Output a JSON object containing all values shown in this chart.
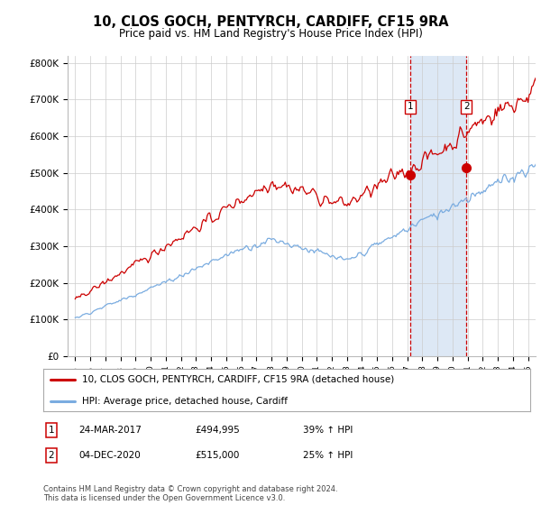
{
  "title": "10, CLOS GOCH, PENTYRCH, CARDIFF, CF15 9RA",
  "subtitle": "Price paid vs. HM Land Registry's House Price Index (HPI)",
  "ylabel_ticks": [
    "£0",
    "£100K",
    "£200K",
    "£300K",
    "£400K",
    "£500K",
    "£600K",
    "£700K",
    "£800K"
  ],
  "ytick_values": [
    0,
    100000,
    200000,
    300000,
    400000,
    500000,
    600000,
    700000,
    800000
  ],
  "ylim": [
    0,
    820000
  ],
  "xlim_start": 1994.5,
  "xlim_end": 2025.5,
  "xticks": [
    1995,
    1996,
    1997,
    1998,
    1999,
    2000,
    2001,
    2002,
    2003,
    2004,
    2005,
    2006,
    2007,
    2008,
    2009,
    2010,
    2011,
    2012,
    2013,
    2014,
    2015,
    2016,
    2017,
    2018,
    2019,
    2020,
    2021,
    2022,
    2023,
    2024,
    2025
  ],
  "event1_x": 2017.22,
  "event1_y": 494995,
  "event1_label": "1",
  "event1_date": "24-MAR-2017",
  "event1_price": "£494,995",
  "event1_hpi": "39% ↑ HPI",
  "event2_x": 2020.92,
  "event2_y": 515000,
  "event2_label": "2",
  "event2_date": "04-DEC-2020",
  "event2_price": "£515,000",
  "event2_hpi": "25% ↑ HPI",
  "property_color": "#cc0000",
  "hpi_color": "#7aace0",
  "legend_property": "10, CLOS GOCH, PENTYRCH, CARDIFF, CF15 9RA (detached house)",
  "legend_hpi": "HPI: Average price, detached house, Cardiff",
  "footer": "Contains HM Land Registry data © Crown copyright and database right 2024.\nThis data is licensed under the Open Government Licence v3.0.",
  "shaded_region_color": "#dde8f5",
  "vline_color": "#cc0000"
}
